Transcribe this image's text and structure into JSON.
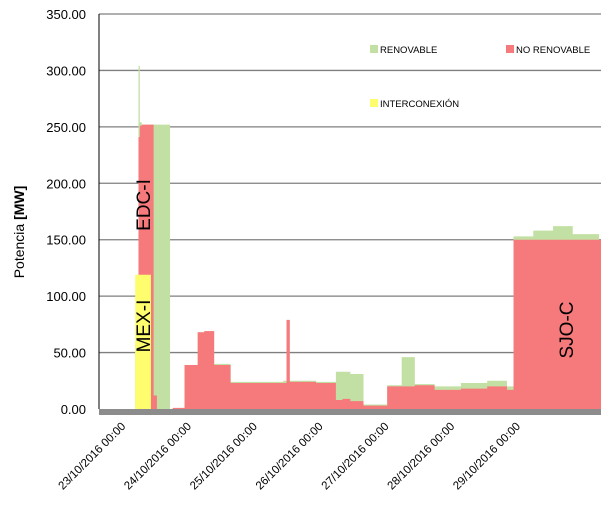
{
  "chart_data": {
    "type": "area",
    "title": "",
    "ylabel": "Potencia [MW]",
    "ylabel_parts": [
      "Potencia ",
      "[MW]"
    ],
    "ylim": [
      0,
      350
    ],
    "y_ticks": [
      "0.00",
      "50.00",
      "100.00",
      "150.00",
      "200.00",
      "250.00",
      "300.00",
      "350.00"
    ],
    "x_ticks": [
      "23/10/2016 00:00",
      "24/10/2016 00:00",
      "25/10/2016 00:00",
      "26/10/2016 00:00",
      "27/10/2016 00:00",
      "28/10/2016 00:00",
      "29/10/2016 00:00"
    ],
    "x_range_days": [
      0,
      7.8
    ],
    "grid": true,
    "legend_position": "top-right",
    "legend": [
      {
        "name": "RENOVABLE",
        "color": "#c3e0a4"
      },
      {
        "name": "NO RENOVABLE",
        "color": "#f6797c"
      },
      {
        "name": "INTERCONEXIÓN",
        "color": "#fdfd6d"
      }
    ],
    "annotations": [
      "EDC-I",
      "MEX-I",
      "SJO-C"
    ],
    "colors": {
      "renovable": "#c3e0a4",
      "no_renovable": "#f6797c",
      "interconexion": "#fdfd6d",
      "grid": "#7f7f7f",
      "baseline": "#8c8c8c"
    },
    "series": [
      {
        "name": "INTERCONEXIÓN",
        "x": [
          0.55,
          0.79
        ],
        "y": [
          119,
          119
        ]
      },
      {
        "name": "NO RENOVABLE",
        "x": [
          0.0,
          0.55,
          0.57,
          0.6,
          0.62,
          0.65,
          0.79,
          0.83,
          0.88,
          1.08,
          1.12,
          1.3,
          1.5,
          1.6,
          1.75,
          1.9,
          2.0,
          2.3,
          2.6,
          2.8,
          2.85,
          2.9,
          3.0,
          3.3,
          3.45,
          3.6,
          3.7,
          3.82,
          4.02,
          4.38,
          4.8,
          5.1,
          5.5,
          5.9,
          6.2,
          6.3,
          7.8
        ],
        "y": [
          0,
          0,
          0,
          241,
          251,
          252,
          252,
          12,
          0,
          0,
          1,
          39,
          68,
          69,
          39,
          39,
          23,
          23,
          23,
          23,
          79,
          24,
          24,
          23,
          23,
          8,
          9,
          7,
          3,
          20,
          21,
          17,
          18,
          20,
          17,
          150,
          150
        ]
      },
      {
        "name": "RENOVABLE",
        "x": [
          0.0,
          0.5,
          0.55,
          0.59,
          0.6,
          0.62,
          0.65,
          0.79,
          1.08,
          1.3,
          1.5,
          1.6,
          1.75,
          1.9,
          2.0,
          2.3,
          2.6,
          2.8,
          2.9,
          3.0,
          3.3,
          3.45,
          3.6,
          3.7,
          3.82,
          4.02,
          4.38,
          4.6,
          4.8,
          5.1,
          5.5,
          5.9,
          6.2,
          6.3,
          6.6,
          6.9,
          7.2,
          7.6
        ],
        "y": [
          0,
          0,
          57,
          57,
          304,
          254,
          252,
          252,
          0,
          39,
          68,
          69,
          40,
          40,
          24,
          24,
          24,
          25,
          25,
          25,
          24,
          24,
          33,
          33,
          31,
          4,
          21,
          46,
          22,
          20,
          23,
          25,
          20,
          153,
          158,
          162,
          155,
          157
        ]
      }
    ]
  }
}
